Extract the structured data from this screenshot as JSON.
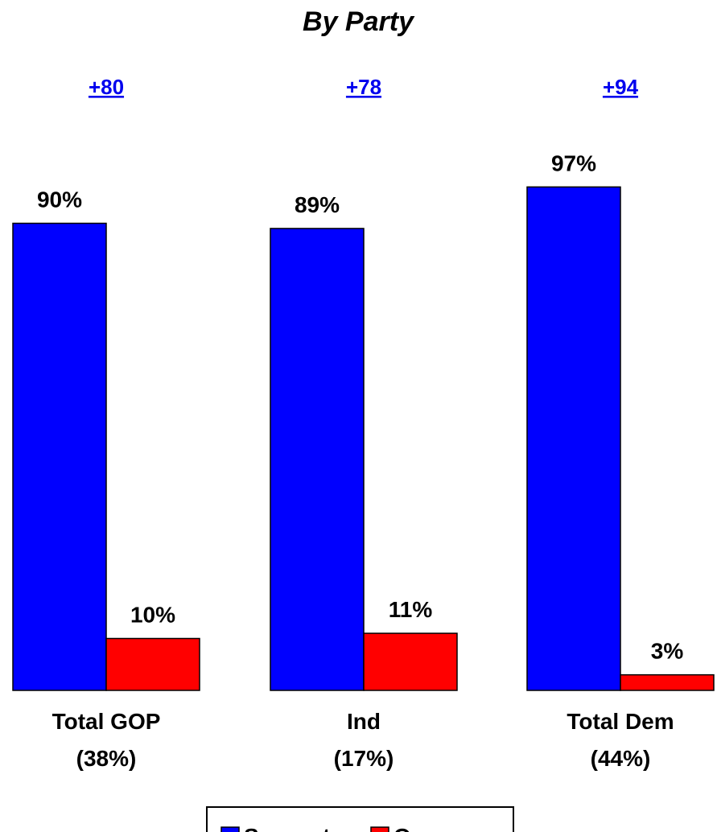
{
  "chart_data": {
    "type": "bar",
    "title": "By Party",
    "categories": [
      {
        "name": "Total GOP",
        "share": "(38%)"
      },
      {
        "name": "Ind",
        "share": "(17%)"
      },
      {
        "name": "Total Dem",
        "share": "(44%)"
      }
    ],
    "series": [
      {
        "name": "Support",
        "color": "#0000ff",
        "values": [
          90,
          89,
          97
        ],
        "labels": [
          "90%",
          "89%",
          "97%"
        ]
      },
      {
        "name": "Oppose",
        "color": "#ff0000",
        "values": [
          10,
          11,
          3
        ],
        "labels": [
          "10%",
          "11%",
          "3%"
        ]
      }
    ],
    "net_labels": [
      "+80",
      "+78",
      "+94"
    ],
    "ylim": [
      0,
      100
    ],
    "grid": false,
    "legend": "bottom"
  }
}
